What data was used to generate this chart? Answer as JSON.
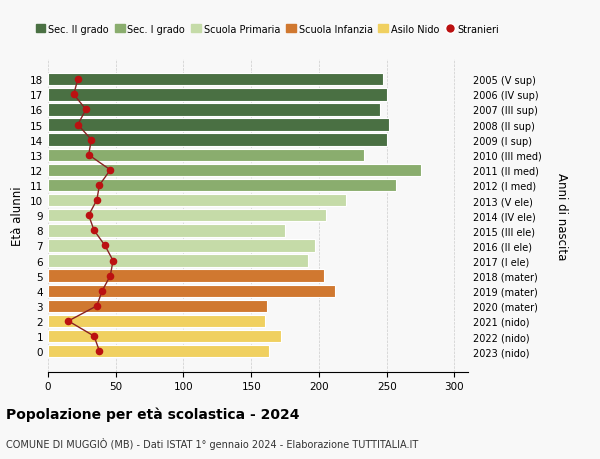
{
  "ages": [
    18,
    17,
    16,
    15,
    14,
    13,
    12,
    11,
    10,
    9,
    8,
    7,
    6,
    5,
    4,
    3,
    2,
    1,
    0
  ],
  "bar_values": [
    247,
    250,
    245,
    252,
    250,
    233,
    275,
    257,
    220,
    205,
    175,
    197,
    192,
    204,
    212,
    162,
    160,
    172,
    163
  ],
  "stranieri_values": [
    22,
    19,
    28,
    22,
    32,
    30,
    46,
    38,
    36,
    30,
    34,
    42,
    48,
    46,
    40,
    36,
    15,
    34,
    38
  ],
  "right_labels": [
    "2005 (V sup)",
    "2006 (IV sup)",
    "2007 (III sup)",
    "2008 (II sup)",
    "2009 (I sup)",
    "2010 (III med)",
    "2011 (II med)",
    "2012 (I med)",
    "2013 (V ele)",
    "2014 (IV ele)",
    "2015 (III ele)",
    "2016 (II ele)",
    "2017 (I ele)",
    "2018 (mater)",
    "2019 (mater)",
    "2020 (mater)",
    "2021 (nido)",
    "2022 (nido)",
    "2023 (nido)"
  ],
  "bar_colors_by_age": {
    "18": "#4a7043",
    "17": "#4a7043",
    "16": "#4a7043",
    "15": "#4a7043",
    "14": "#4a7043",
    "13": "#8aad6e",
    "12": "#8aad6e",
    "11": "#8aad6e",
    "10": "#c5dba8",
    "9": "#c5dba8",
    "8": "#c5dba8",
    "7": "#c5dba8",
    "6": "#c5dba8",
    "5": "#d07830",
    "4": "#d07830",
    "3": "#d07830",
    "2": "#f0d060",
    "1": "#f0d060",
    "0": "#f0d060"
  },
  "stranieri_color": "#bb1111",
  "line_color": "#882222",
  "title": "Popolazione per età scolastica - 2024",
  "subtitle": "COMUNE DI MUGGIÒ (MB) - Dati ISTAT 1° gennaio 2024 - Elaborazione TUTTITALIA.IT",
  "ylabel": "Età alunni",
  "right_ylabel": "Anni di nascita",
  "xlim": [
    0,
    310
  ],
  "xticks": [
    0,
    50,
    100,
    150,
    200,
    250,
    300
  ],
  "bg_color": "#f8f8f8",
  "legend_labels": [
    "Sec. II grado",
    "Sec. I grado",
    "Scuola Primaria",
    "Scuola Infanzia",
    "Asilo Nido",
    "Stranieri"
  ],
  "legend_colors": [
    "#4a7043",
    "#8aad6e",
    "#c5dba8",
    "#d07830",
    "#f0d060",
    "#bb1111"
  ]
}
